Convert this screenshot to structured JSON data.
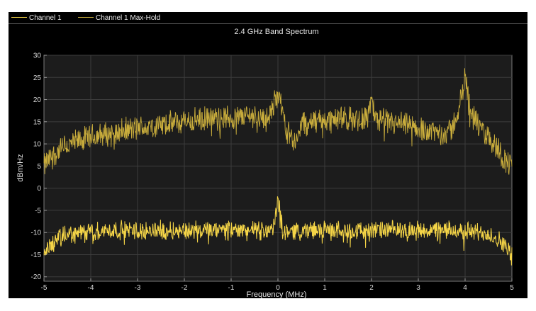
{
  "legend": {
    "items": [
      {
        "label": "Channel 1",
        "color": "#f5d547"
      },
      {
        "label": "Channel 1 Max-Hold",
        "color": "#c9ad3c"
      }
    ]
  },
  "chart_data": {
    "type": "line",
    "title": "2.4 GHz Band Spectrum",
    "xlabel": "Frequency (MHz)",
    "ylabel": "dBm/Hz",
    "xlim": [
      -5,
      5
    ],
    "ylim": [
      -21,
      30
    ],
    "xticks": [
      "-5",
      "-4",
      "-3",
      "-2",
      "-1",
      "0",
      "1",
      "2",
      "3",
      "4",
      "5"
    ],
    "yticks": [
      "30",
      "25",
      "20",
      "15",
      "10",
      "5",
      "0",
      "-5",
      "-10",
      "-15",
      "-20"
    ],
    "grid": true,
    "legend_placement": "top-left",
    "series": [
      {
        "name": "Channel 1",
        "color": "#f5d547",
        "x": [
          -5,
          -4.9,
          -4.8,
          -4.7,
          -4.5,
          -4,
          -3.5,
          -3,
          -2.5,
          -2,
          -1.5,
          -1,
          -0.5,
          -0.1,
          0,
          0.1,
          0.5,
          1,
          1.5,
          2,
          2.5,
          3,
          3.5,
          4,
          4.5,
          4.7,
          4.8,
          4.9,
          5
        ],
        "y": [
          -14.5,
          -13.5,
          -12.5,
          -11.5,
          -10.5,
          -9.8,
          -9.5,
          -9.5,
          -9.5,
          -9.5,
          -9.6,
          -9.5,
          -9.5,
          -9.5,
          -2.5,
          -9.5,
          -9.5,
          -9.5,
          -9.5,
          -9.5,
          -9.5,
          -9.5,
          -9.5,
          -9.6,
          -10.2,
          -11.5,
          -12.5,
          -13.5,
          -15.5
        ]
      },
      {
        "name": "Channel 1 Max-Hold",
        "color": "#c9ad3c",
        "x": [
          -5,
          -4.8,
          -4.6,
          -4.4,
          -4.2,
          -4,
          -3.5,
          -3,
          -2.5,
          -2,
          -1.5,
          -1,
          -0.5,
          -0.2,
          -0.05,
          0,
          0.05,
          0.2,
          0.4,
          0.5,
          1,
          1.5,
          1.9,
          2,
          2.1,
          2.5,
          3,
          3.5,
          3.7,
          3.85,
          3.95,
          4,
          4.05,
          4.15,
          4.3,
          4.5,
          4.7,
          4.8,
          4.9,
          5
        ],
        "y": [
          5,
          7.5,
          9,
          10,
          10.8,
          11.5,
          12.5,
          13.5,
          14.2,
          15,
          15.5,
          16,
          16.5,
          15.5,
          20,
          22,
          19,
          13,
          10,
          14.5,
          15.5,
          15.5,
          16,
          19.5,
          15.5,
          14.5,
          13.5,
          12.5,
          13,
          17,
          22,
          25.5,
          22,
          17,
          13.5,
          11.5,
          9,
          7,
          6,
          5
        ]
      }
    ]
  }
}
